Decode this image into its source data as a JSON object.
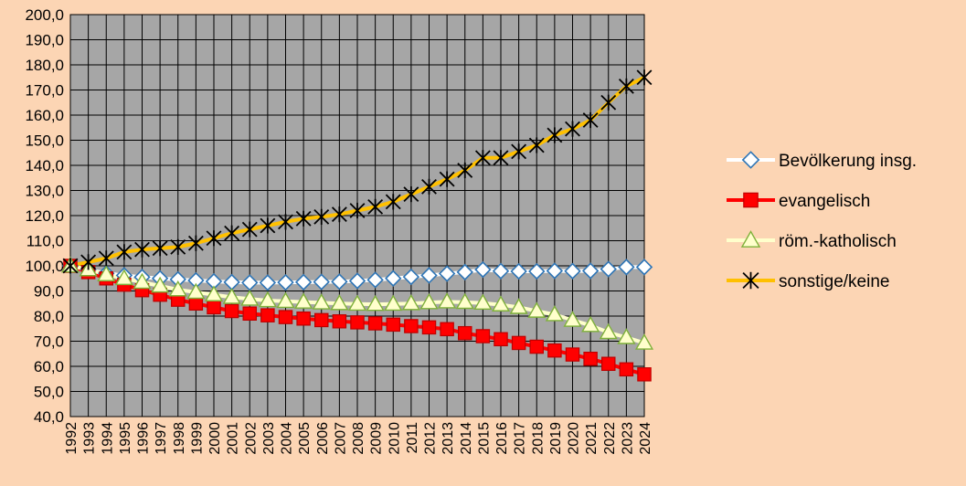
{
  "chart_data": {
    "type": "line",
    "title": "",
    "xlabel": "",
    "ylabel": "",
    "ylim": [
      40,
      200
    ],
    "y_step": 10,
    "grid": true,
    "legend_position": "right",
    "colors": {
      "background": "#fcd5b4",
      "plot_area": "#a6a6a6",
      "grid": "#000000"
    },
    "x": [
      "1992",
      "1993",
      "1994",
      "1995",
      "1996",
      "1997",
      "1998",
      "1999",
      "2000",
      "2001",
      "2002",
      "2003",
      "2004",
      "2005",
      "2006",
      "2007",
      "2008",
      "2009",
      "2010",
      "2011",
      "2012",
      "2013",
      "2014",
      "2015",
      "2016",
      "2017",
      "2018",
      "2019",
      "2020",
      "2021",
      "2022",
      "2023",
      "2024"
    ],
    "series": [
      {
        "name": "Bevölkerung insg.",
        "color": "#ffffff",
        "marker": "diamond",
        "marker_stroke": "#2e75b6",
        "marker_fill": "#ffffff",
        "values": [
          100.0,
          98.5,
          97.0,
          96.2,
          95.5,
          95.0,
          94.6,
          94.2,
          93.8,
          93.5,
          93.3,
          93.3,
          93.4,
          93.5,
          93.6,
          93.7,
          94.0,
          94.4,
          95.0,
          95.6,
          96.2,
          96.9,
          97.5,
          98.5,
          97.9,
          97.8,
          97.8,
          98.0,
          97.9,
          98.0,
          98.7,
          99.5,
          99.5
        ]
      },
      {
        "name": "evangelisch",
        "color": "#ff0000",
        "marker": "square",
        "marker_stroke": "#c00000",
        "marker_fill": "#ff0000",
        "values": [
          100.0,
          97.5,
          95.0,
          92.5,
          90.3,
          88.5,
          86.5,
          85.0,
          83.5,
          82.0,
          81.0,
          80.3,
          79.6,
          79.0,
          78.4,
          77.9,
          77.5,
          77.1,
          76.6,
          76.0,
          75.5,
          74.8,
          73.2,
          72.0,
          70.8,
          69.3,
          67.8,
          66.3,
          64.7,
          63.0,
          61.0,
          58.8,
          56.8
        ]
      },
      {
        "name": "röm.-katholisch",
        "color": "#ffffcc",
        "marker": "triangle",
        "marker_stroke": "#7fb13a",
        "marker_fill": "#ffffcc",
        "values": [
          100.0,
          98.5,
          96.5,
          95.0,
          93.5,
          92.0,
          90.5,
          89.5,
          88.5,
          87.5,
          86.8,
          86.2,
          85.9,
          85.6,
          85.3,
          85.0,
          84.8,
          84.7,
          84.8,
          85.0,
          85.4,
          85.7,
          85.5,
          85.2,
          84.5,
          83.5,
          82.0,
          80.6,
          78.4,
          76.3,
          73.5,
          71.5,
          69.3
        ]
      },
      {
        "name": "sonstige/keine",
        "color": "#ffc000",
        "marker": "asterisk",
        "marker_stroke": "#000000",
        "marker_fill": "none",
        "values": [
          100.0,
          101.5,
          103.0,
          105.5,
          106.5,
          107.0,
          107.5,
          109.0,
          111.0,
          113.0,
          114.5,
          116.0,
          117.5,
          118.8,
          119.5,
          120.5,
          122.0,
          123.5,
          125.5,
          128.5,
          131.5,
          134.5,
          138.0,
          143.0,
          143.0,
          145.5,
          148.0,
          152.0,
          154.5,
          158.0,
          165.0,
          171.5,
          175.0
        ]
      }
    ]
  }
}
